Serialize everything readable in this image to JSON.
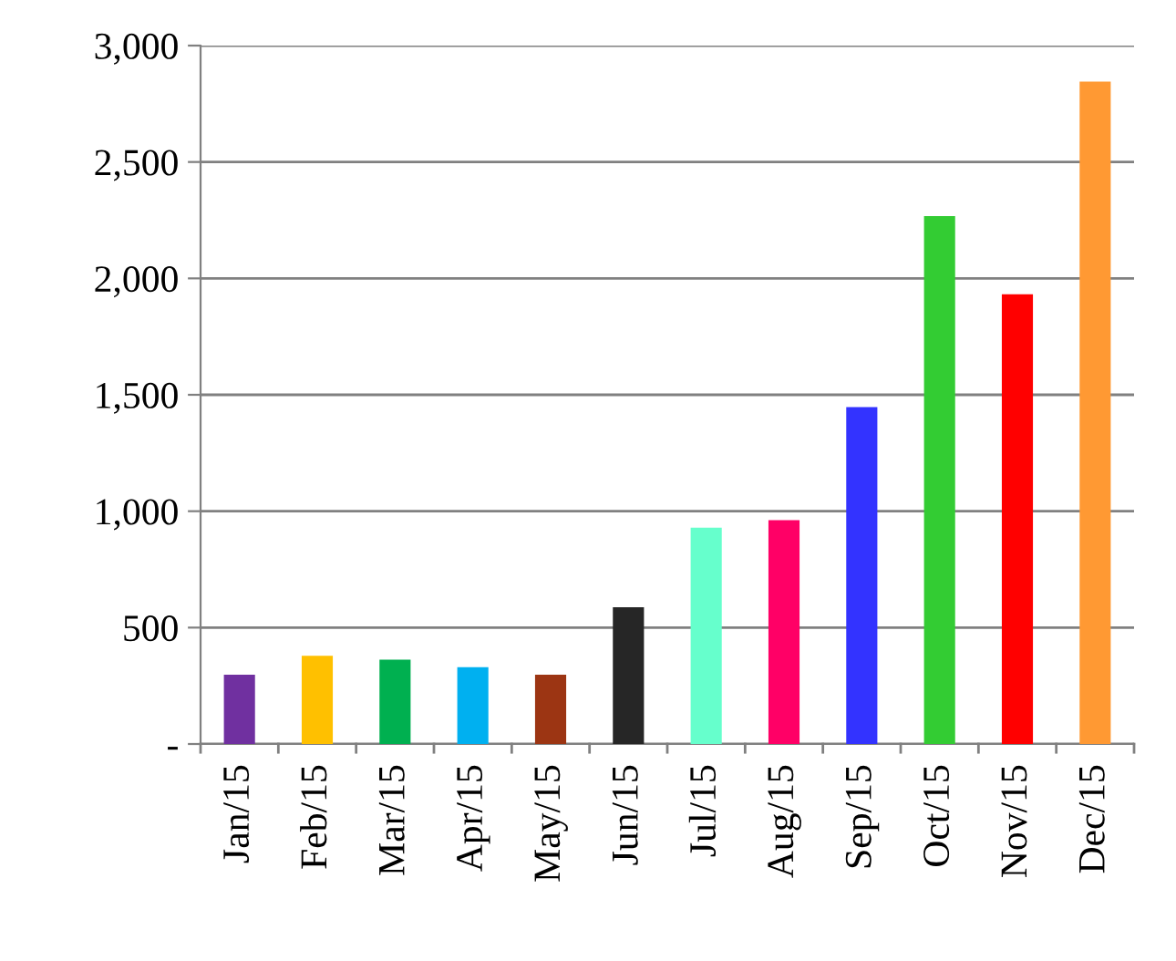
{
  "chart_data": {
    "type": "bar",
    "categories": [
      "Jan/15",
      "Feb/15",
      "Mar/15",
      "Apr/15",
      "May/15",
      "Jun/15",
      "Jul/15",
      "Aug/15",
      "Sep/15",
      "Oct/15",
      "Nov/15",
      "Dec/15"
    ],
    "values": [
      298,
      379,
      362,
      330,
      298,
      587,
      929,
      961,
      1447,
      2268,
      1932,
      2845
    ],
    "colors": [
      "#7030a0",
      "#ffc000",
      "#00b050",
      "#00b0f0",
      "#9c3513",
      "#262626",
      "#66ffcc",
      "#ff0066",
      "#3333ff",
      "#33cc33",
      "#ff0000",
      "#ff9933"
    ],
    "ylim": [
      0,
      3000
    ],
    "yticks": [
      {
        "value": 0,
        "label": "-"
      },
      {
        "value": 500,
        "label": "500"
      },
      {
        "value": 1000,
        "label": "1,000"
      },
      {
        "value": 1500,
        "label": "1,500"
      },
      {
        "value": 2000,
        "label": "2,000"
      },
      {
        "value": 2500,
        "label": "2,500"
      },
      {
        "value": 3000,
        "label": "3,000"
      }
    ],
    "grid": "y",
    "legend": false
  }
}
